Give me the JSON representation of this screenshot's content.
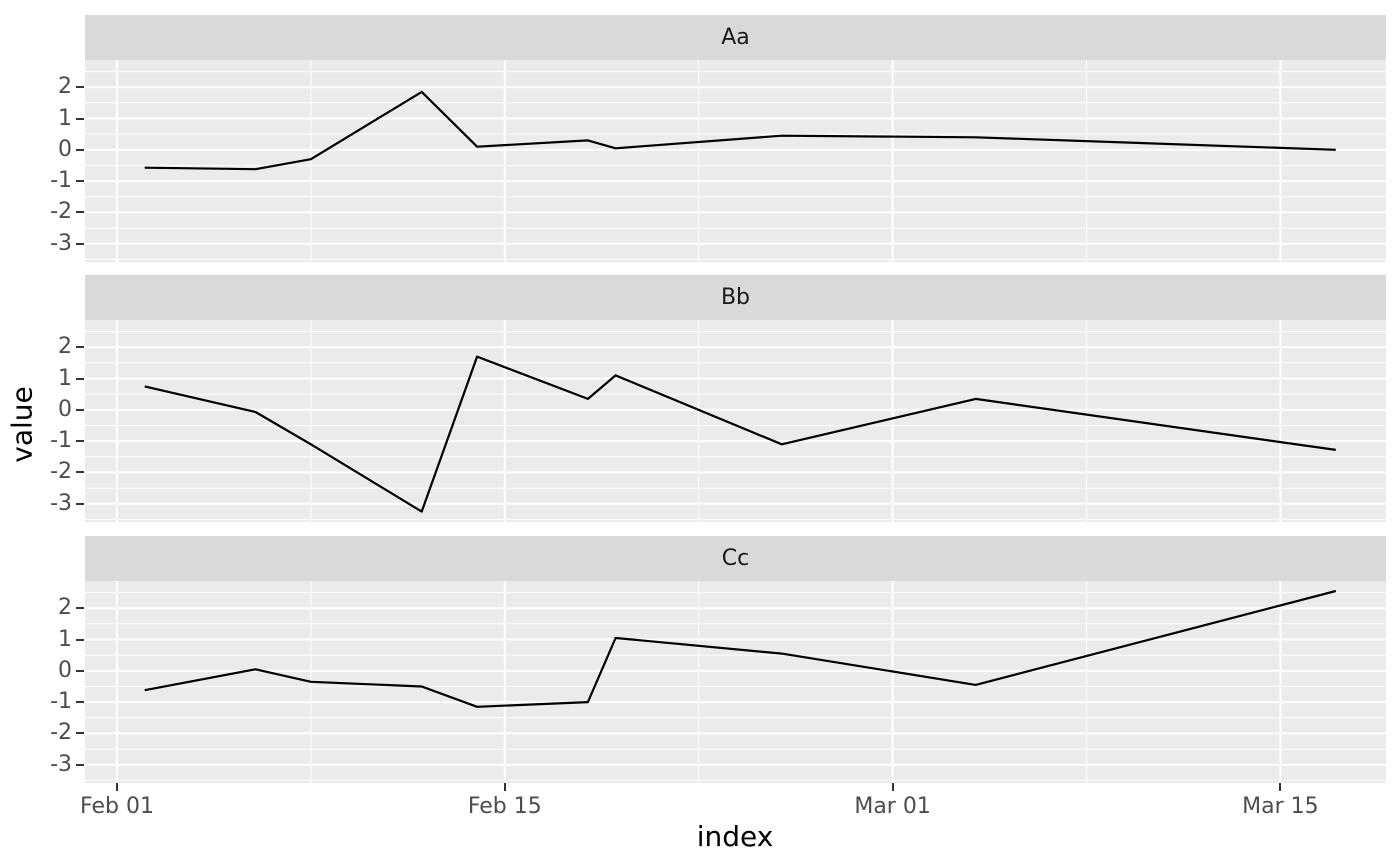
{
  "chart_data": {
    "type": "line",
    "faceted": true,
    "title": "",
    "xlabel": "index",
    "ylabel": "value",
    "x_dates": [
      "Feb 02",
      "Feb 06",
      "Feb 08",
      "Feb 12",
      "Feb 14",
      "Feb 18",
      "Feb 19",
      "Feb 25",
      "Mar 04",
      "Mar 17"
    ],
    "x_days_from_feb01": [
      1,
      5,
      7,
      11,
      13,
      17,
      18,
      24,
      31,
      44
    ],
    "facets": [
      {
        "label": "Aa",
        "values": [
          -0.57,
          -0.62,
          -0.3,
          1.85,
          0.1,
          0.3,
          0.05,
          0.45,
          0.4,
          0.0
        ]
      },
      {
        "label": "Bb",
        "values": [
          0.75,
          -0.07,
          -1.1,
          -3.25,
          1.7,
          0.35,
          1.1,
          -1.1,
          0.35,
          -1.28
        ]
      },
      {
        "label": "Cc",
        "values": [
          -0.62,
          0.05,
          -0.35,
          -0.5,
          -1.15,
          -1.0,
          1.05,
          0.55,
          -0.45,
          2.55
        ]
      }
    ],
    "x_axis": {
      "tick_labels": [
        "Feb 01",
        "Feb 15",
        "Mar 01",
        "Mar 15"
      ],
      "tick_days": [
        0,
        14,
        28,
        42
      ],
      "minor_days": [
        7,
        21,
        35
      ]
    },
    "y_axis": {
      "tick_labels": [
        "2",
        "1",
        "0",
        "-1",
        "-2",
        "-3"
      ],
      "tick_values": [
        2,
        1,
        0,
        -1,
        -2,
        -3
      ],
      "minor_values": [
        2.5,
        1.5,
        0.5,
        -0.5,
        -1.5,
        -2.5,
        -3.5
      ]
    },
    "ylim": [
      -3.58,
      2.87
    ],
    "xlim_days": [
      -1.16,
      45.8
    ],
    "grid": "on",
    "legend": "none",
    "colors": {
      "panel_bg": "#ebebeb",
      "strip_bg": "#d9d9d9",
      "gridline": "#ffffff",
      "line": "#000000",
      "tick_text": "#4d4d4d",
      "tick_mark": "#333333",
      "axis_title": "#000000",
      "page_bg": "#ffffff"
    }
  }
}
